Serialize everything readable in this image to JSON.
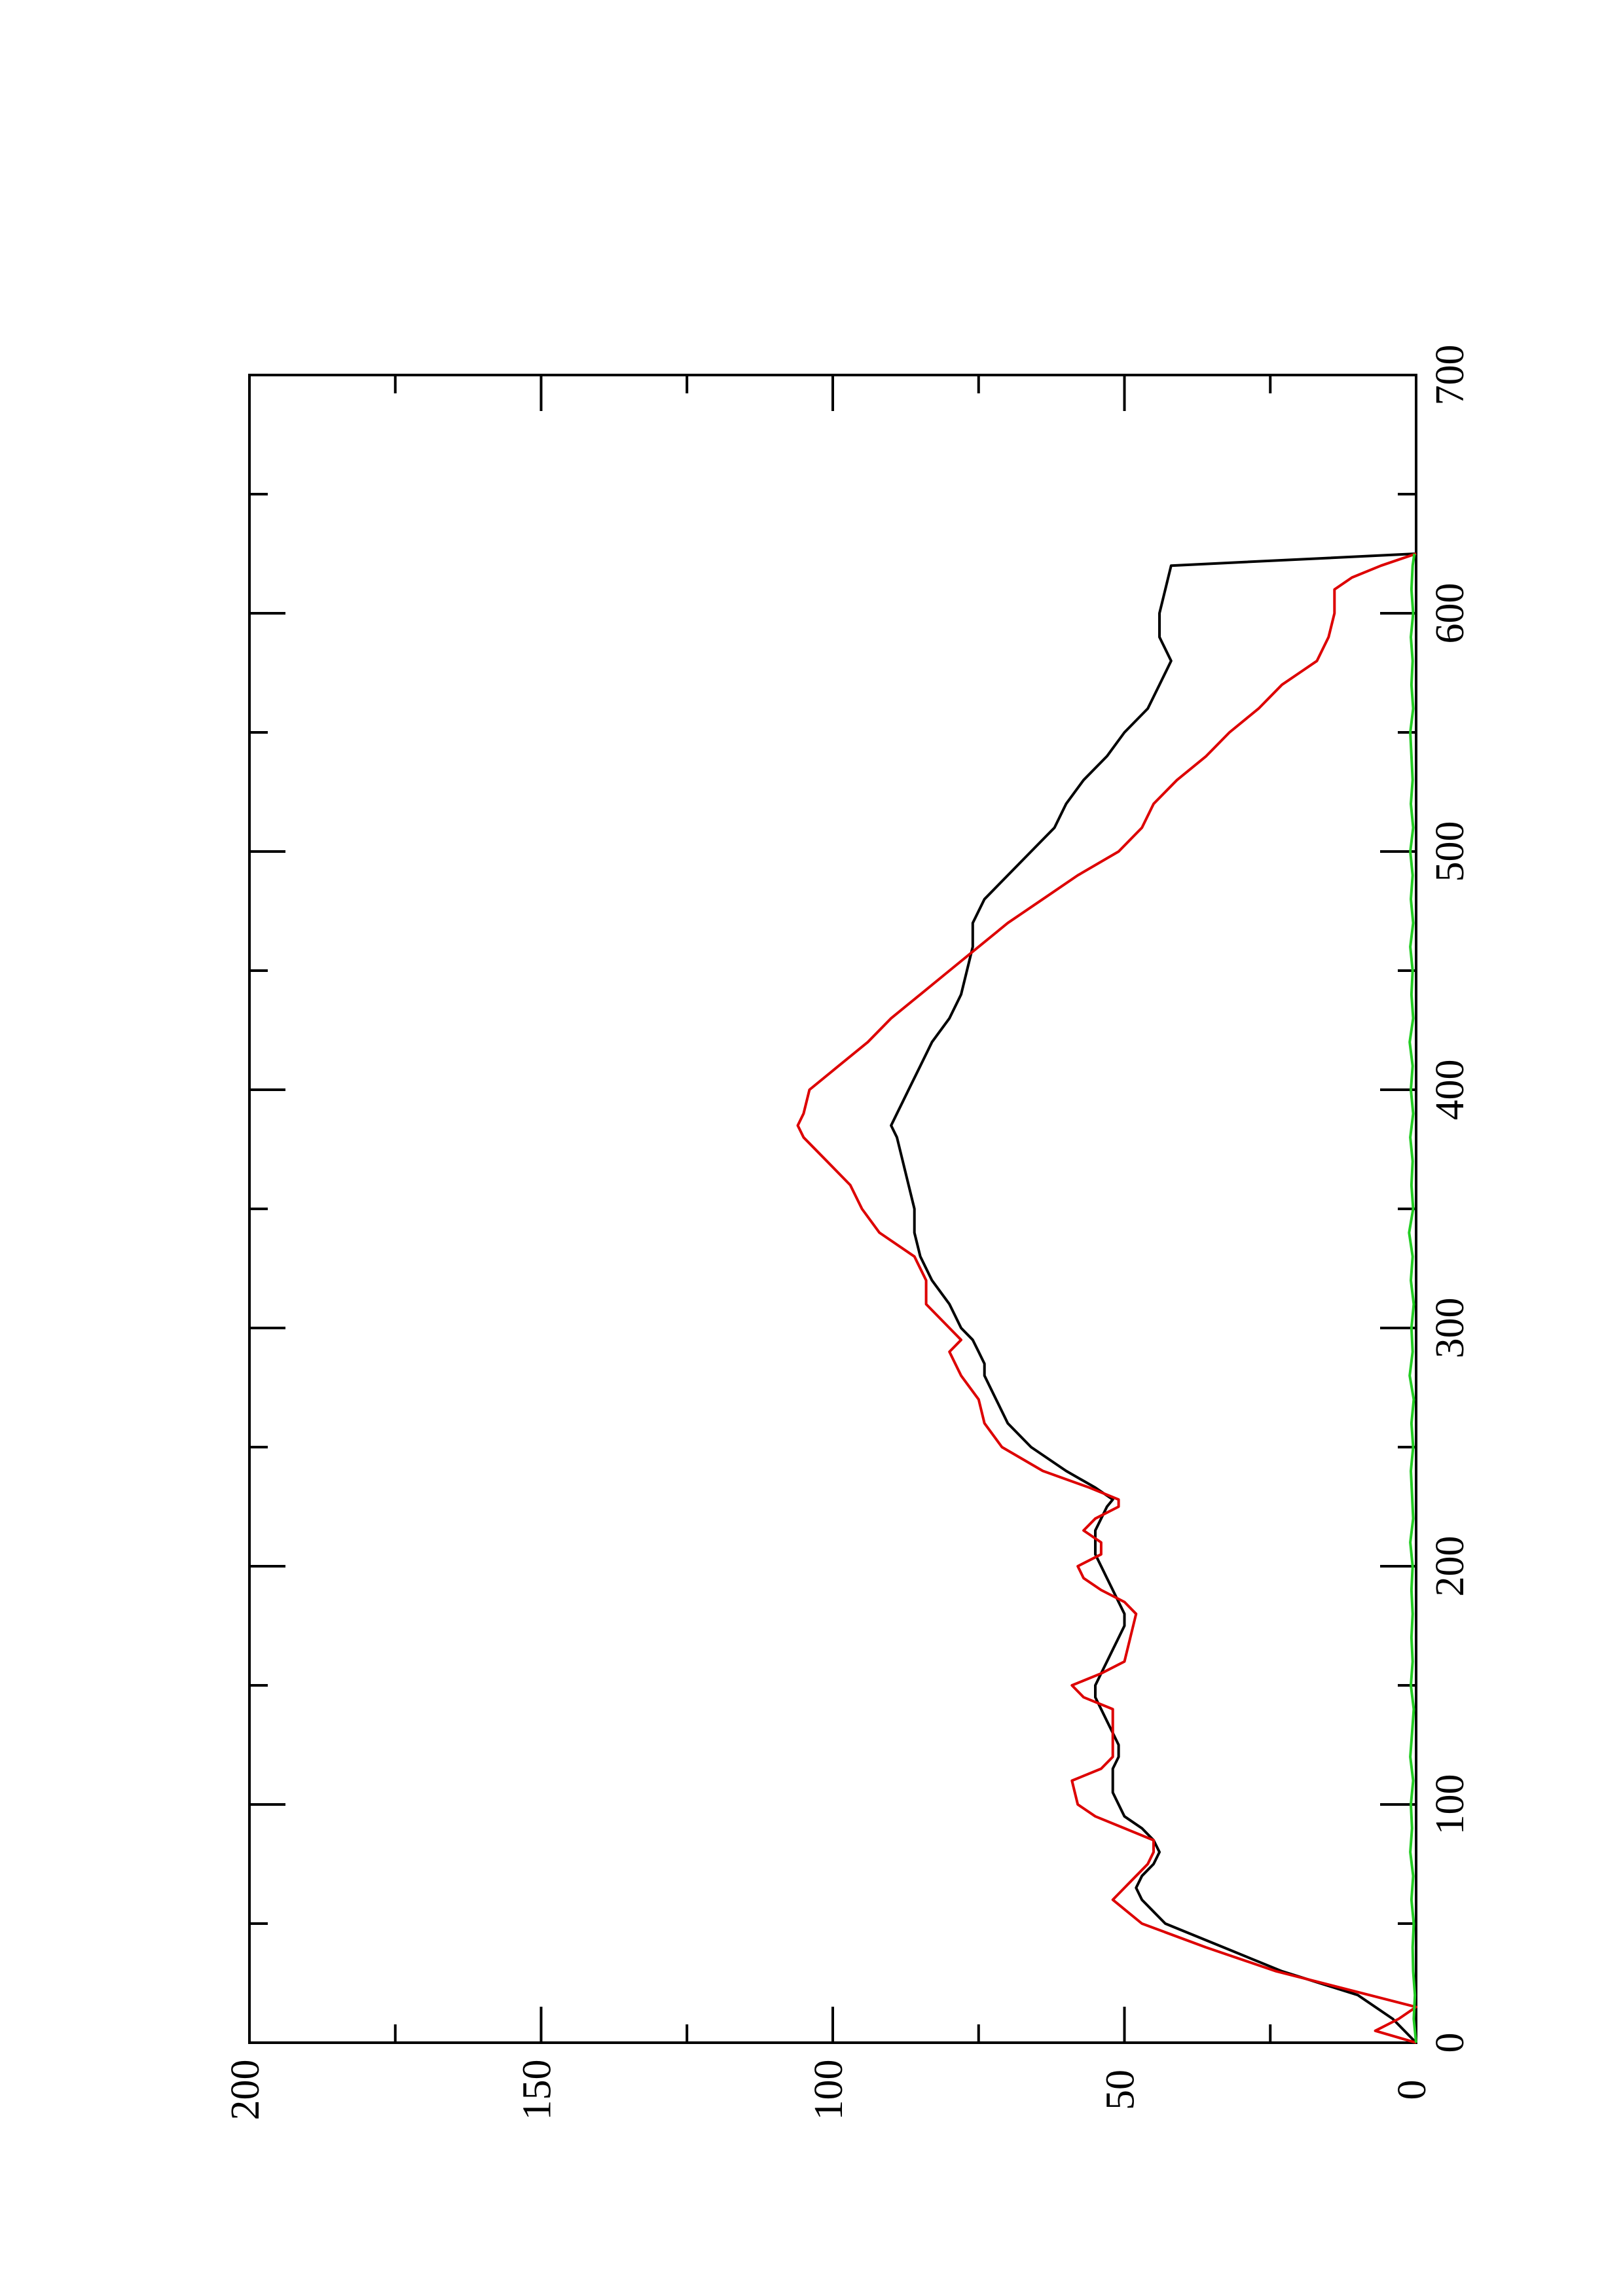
{
  "chart_data": {
    "type": "line",
    "orientation": "rotated-90-ccw",
    "title": "",
    "xlabel": "",
    "ylabel": "",
    "xlim": [
      0,
      700
    ],
    "ylim": [
      0,
      200
    ],
    "x_ticks": [
      "0",
      "100",
      "200",
      "300",
      "400",
      "500",
      "600",
      "700"
    ],
    "y_ticks": [
      "0",
      "50",
      "100",
      "150",
      "200"
    ],
    "grid": false,
    "legend": "none",
    "series": [
      {
        "color": "#000000",
        "points": [
          [
            0,
            0
          ],
          [
            10,
            4
          ],
          [
            20,
            10
          ],
          [
            30,
            23
          ],
          [
            40,
            33
          ],
          [
            50,
            43
          ],
          [
            55,
            45
          ],
          [
            60,
            47
          ],
          [
            65,
            48
          ],
          [
            70,
            47
          ],
          [
            75,
            45
          ],
          [
            80,
            44
          ],
          [
            85,
            45
          ],
          [
            90,
            47
          ],
          [
            95,
            50
          ],
          [
            100,
            51
          ],
          [
            105,
            52
          ],
          [
            110,
            52
          ],
          [
            115,
            52
          ],
          [
            120,
            51
          ],
          [
            125,
            51
          ],
          [
            130,
            52
          ],
          [
            135,
            53
          ],
          [
            140,
            54
          ],
          [
            145,
            55
          ],
          [
            150,
            55
          ],
          [
            155,
            54
          ],
          [
            160,
            53
          ],
          [
            165,
            52
          ],
          [
            170,
            51
          ],
          [
            175,
            50
          ],
          [
            180,
            50
          ],
          [
            185,
            51
          ],
          [
            190,
            52
          ],
          [
            195,
            53
          ],
          [
            200,
            54
          ],
          [
            205,
            55
          ],
          [
            210,
            55
          ],
          [
            215,
            55
          ],
          [
            220,
            54
          ],
          [
            225,
            53
          ],
          [
            228,
            52
          ],
          [
            233,
            55
          ],
          [
            240,
            60
          ],
          [
            250,
            66
          ],
          [
            260,
            70
          ],
          [
            270,
            72
          ],
          [
            280,
            74
          ],
          [
            285,
            74
          ],
          [
            290,
            75
          ],
          [
            295,
            76
          ],
          [
            300,
            78
          ],
          [
            305,
            79
          ],
          [
            310,
            80
          ],
          [
            320,
            83
          ],
          [
            330,
            85
          ],
          [
            340,
            86
          ],
          [
            350,
            86
          ],
          [
            360,
            87
          ],
          [
            370,
            88
          ],
          [
            380,
            89
          ],
          [
            385,
            90
          ],
          [
            390,
            89
          ],
          [
            395,
            88
          ],
          [
            400,
            87
          ],
          [
            410,
            85
          ],
          [
            420,
            83
          ],
          [
            430,
            80
          ],
          [
            440,
            78
          ],
          [
            450,
            77
          ],
          [
            460,
            76
          ],
          [
            470,
            76
          ],
          [
            480,
            74
          ],
          [
            490,
            70
          ],
          [
            500,
            66
          ],
          [
            510,
            62
          ],
          [
            520,
            60
          ],
          [
            530,
            57
          ],
          [
            540,
            53
          ],
          [
            550,
            50
          ],
          [
            560,
            46
          ],
          [
            570,
            44
          ],
          [
            580,
            42
          ],
          [
            590,
            44
          ],
          [
            600,
            44
          ],
          [
            610,
            43
          ],
          [
            620,
            42
          ],
          [
            625,
            0
          ]
        ]
      },
      {
        "color": "#dd0000",
        "points": [
          [
            0,
            0
          ],
          [
            5,
            7
          ],
          [
            10,
            3
          ],
          [
            15,
            0
          ],
          [
            20,
            8
          ],
          [
            30,
            24
          ],
          [
            40,
            36
          ],
          [
            50,
            47
          ],
          [
            60,
            52
          ],
          [
            65,
            50
          ],
          [
            70,
            48
          ],
          [
            75,
            46
          ],
          [
            80,
            45
          ],
          [
            85,
            45
          ],
          [
            90,
            50
          ],
          [
            95,
            55
          ],
          [
            100,
            58
          ],
          [
            110,
            59
          ],
          [
            115,
            54
          ],
          [
            120,
            52
          ],
          [
            130,
            52
          ],
          [
            140,
            52
          ],
          [
            145,
            57
          ],
          [
            150,
            59
          ],
          [
            155,
            54
          ],
          [
            160,
            50
          ],
          [
            170,
            49
          ],
          [
            180,
            48
          ],
          [
            185,
            50
          ],
          [
            190,
            54
          ],
          [
            195,
            57
          ],
          [
            200,
            58
          ],
          [
            205,
            54
          ],
          [
            210,
            54
          ],
          [
            215,
            57
          ],
          [
            220,
            55
          ],
          [
            225,
            51
          ],
          [
            228,
            51
          ],
          [
            233,
            56
          ],
          [
            240,
            64
          ],
          [
            250,
            71
          ],
          [
            260,
            74
          ],
          [
            270,
            75
          ],
          [
            280,
            78
          ],
          [
            285,
            79
          ],
          [
            290,
            80
          ],
          [
            295,
            78
          ],
          [
            300,
            80
          ],
          [
            310,
            84
          ],
          [
            320,
            84
          ],
          [
            330,
            86
          ],
          [
            340,
            92
          ],
          [
            350,
            95
          ],
          [
            360,
            97
          ],
          [
            370,
            101
          ],
          [
            380,
            105
          ],
          [
            385,
            106
          ],
          [
            390,
            105
          ],
          [
            400,
            104
          ],
          [
            410,
            99
          ],
          [
            420,
            94
          ],
          [
            430,
            90
          ],
          [
            440,
            85
          ],
          [
            450,
            80
          ],
          [
            460,
            75
          ],
          [
            470,
            70
          ],
          [
            480,
            64
          ],
          [
            490,
            58
          ],
          [
            500,
            51
          ],
          [
            510,
            47
          ],
          [
            520,
            45
          ],
          [
            530,
            41
          ],
          [
            540,
            36
          ],
          [
            550,
            32
          ],
          [
            560,
            27
          ],
          [
            570,
            23
          ],
          [
            575,
            20
          ],
          [
            580,
            17
          ],
          [
            590,
            15
          ],
          [
            600,
            14
          ],
          [
            610,
            14
          ],
          [
            615,
            11
          ],
          [
            620,
            6
          ],
          [
            625,
            0
          ]
        ]
      },
      {
        "color": "#22cc22",
        "points": [
          [
            0,
            0
          ],
          [
            10,
            0.4
          ],
          [
            20,
            0.2
          ],
          [
            30,
            0.5
          ],
          [
            40,
            0.6
          ],
          [
            50,
            0.4
          ],
          [
            60,
            0.8
          ],
          [
            70,
            0.5
          ],
          [
            80,
            1.0
          ],
          [
            90,
            0.7
          ],
          [
            100,
            0.9
          ],
          [
            110,
            0.5
          ],
          [
            120,
            1.0
          ],
          [
            130,
            0.7
          ],
          [
            140,
            0.4
          ],
          [
            150,
            0.9
          ],
          [
            160,
            0.6
          ],
          [
            170,
            0.8
          ],
          [
            180,
            0.6
          ],
          [
            190,
            0.8
          ],
          [
            200,
            0.6
          ],
          [
            210,
            1.0
          ],
          [
            220,
            0.5
          ],
          [
            230,
            0.7
          ],
          [
            240,
            0.9
          ],
          [
            250,
            0.5
          ],
          [
            260,
            0.8
          ],
          [
            270,
            0.4
          ],
          [
            280,
            1.1
          ],
          [
            290,
            0.6
          ],
          [
            300,
            0.8
          ],
          [
            310,
            0.4
          ],
          [
            320,
            0.9
          ],
          [
            330,
            0.6
          ],
          [
            340,
            1.2
          ],
          [
            350,
            0.5
          ],
          [
            360,
            0.8
          ],
          [
            370,
            0.6
          ],
          [
            380,
            1.0
          ],
          [
            390,
            0.5
          ],
          [
            400,
            0.9
          ],
          [
            410,
            0.6
          ],
          [
            420,
            1.1
          ],
          [
            430,
            0.5
          ],
          [
            440,
            0.8
          ],
          [
            450,
            0.6
          ],
          [
            460,
            1.0
          ],
          [
            470,
            0.5
          ],
          [
            480,
            0.9
          ],
          [
            490,
            0.6
          ],
          [
            500,
            1.0
          ],
          [
            510,
            0.5
          ],
          [
            520,
            0.9
          ],
          [
            530,
            0.6
          ],
          [
            540,
            0.8
          ],
          [
            550,
            1.0
          ],
          [
            560,
            0.5
          ],
          [
            570,
            0.8
          ],
          [
            580,
            0.6
          ],
          [
            590,
            0.9
          ],
          [
            600,
            0.5
          ],
          [
            610,
            0.8
          ],
          [
            620,
            0.6
          ],
          [
            625,
            0.3
          ]
        ]
      }
    ]
  }
}
